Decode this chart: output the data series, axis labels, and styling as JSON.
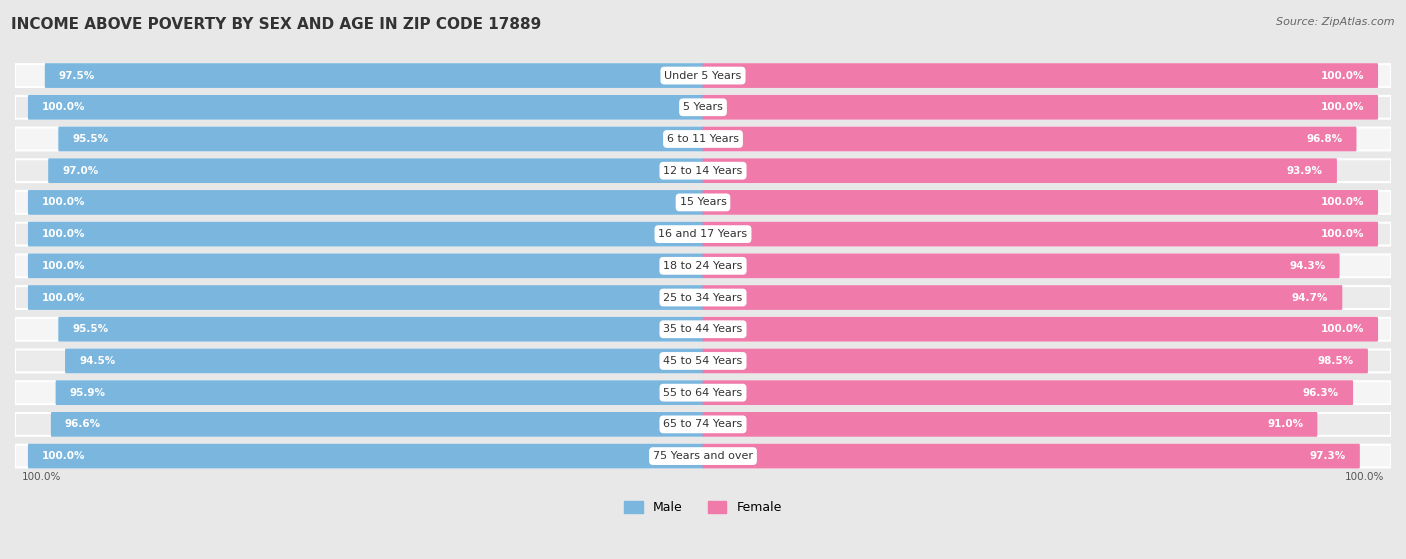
{
  "title": "INCOME ABOVE POVERTY BY SEX AND AGE IN ZIP CODE 17889",
  "source": "Source: ZipAtlas.com",
  "categories": [
    "Under 5 Years",
    "5 Years",
    "6 to 11 Years",
    "12 to 14 Years",
    "15 Years",
    "16 and 17 Years",
    "18 to 24 Years",
    "25 to 34 Years",
    "35 to 44 Years",
    "45 to 54 Years",
    "55 to 64 Years",
    "65 to 74 Years",
    "75 Years and over"
  ],
  "male_values": [
    97.5,
    100.0,
    95.5,
    97.0,
    100.0,
    100.0,
    100.0,
    100.0,
    95.5,
    94.5,
    95.9,
    96.6,
    100.0
  ],
  "female_values": [
    100.0,
    100.0,
    96.8,
    93.9,
    100.0,
    100.0,
    94.3,
    94.7,
    100.0,
    98.5,
    96.3,
    91.0,
    97.3
  ],
  "male_color": "#7ab6de",
  "female_color": "#f07aaa",
  "background_color": "#e8e8e8",
  "row_bg_odd": "#f5f5f5",
  "row_bg_even": "#ebebeb",
  "bar_height": 0.62,
  "title_fontsize": 11,
  "label_fontsize": 8,
  "value_fontsize": 7.5,
  "legend_fontsize": 9,
  "source_fontsize": 8
}
